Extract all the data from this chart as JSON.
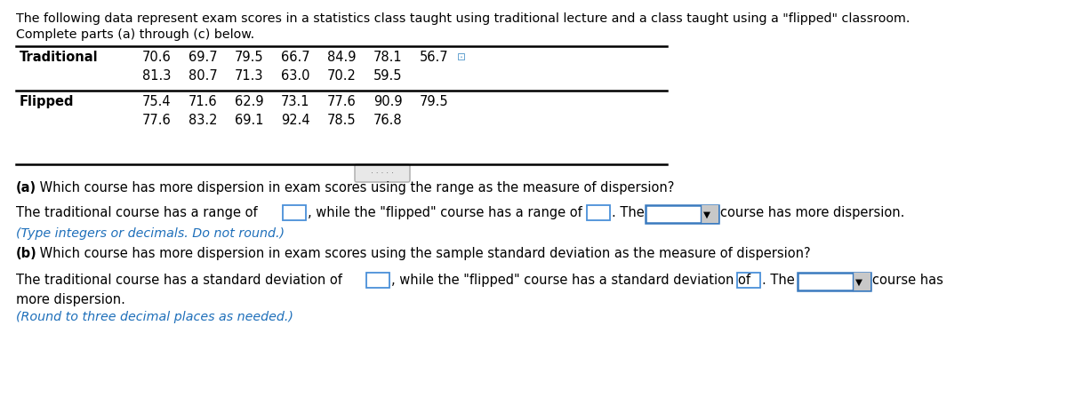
{
  "header_text": "The following data represent exam scores in a statistics class taught using traditional lecture and a class taught using a \"flipped\" classroom.",
  "header_text2": "Complete parts (a) through (c) below.",
  "traditional_row1": [
    "70.6",
    "69.7",
    "79.5",
    "66.7",
    "84.9",
    "78.1",
    "56.7"
  ],
  "traditional_row2": [
    "81.3",
    "80.7",
    "71.3",
    "63.0",
    "70.2",
    "59.5"
  ],
  "flipped_row1": [
    "75.4",
    "71.6",
    "62.9",
    "73.1",
    "77.6",
    "90.9",
    "79.5"
  ],
  "flipped_row2": [
    "77.6",
    "83.2",
    "69.1",
    "92.4",
    "78.5",
    "76.8"
  ],
  "part_a_q": "(a) Which course has more dispersion in exam scores using the range as the measure of dispersion?",
  "part_a_bold": "(a)",
  "part_a_rest": " Which course has more dispersion in exam scores using the range as the measure of dispersion?",
  "part_a_note": "(Type integers or decimals. Do not round.)",
  "part_b_bold": "(b)",
  "part_b_rest": " Which course has more dispersion in exam scores using the sample standard deviation as the measure of dispersion?",
  "part_b_note": "(Round to three decimal places as needed.)",
  "bg_color": "#ffffff",
  "text_color": "#000000",
  "blue_color": "#1e6fba",
  "box_border_color": "#4a90d9",
  "drop_border_color": "#3a7abf",
  "drop_arrow_box": "#d0d0d0"
}
